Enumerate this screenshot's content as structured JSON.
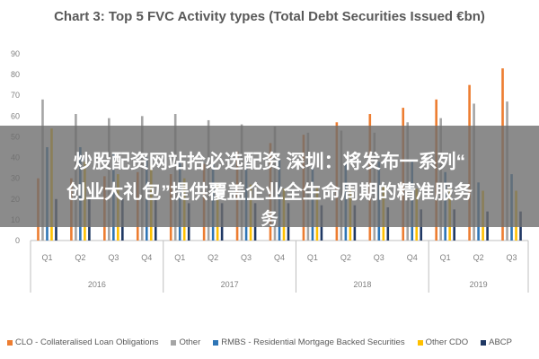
{
  "chart_data": {
    "type": "bar",
    "title": "Chart 3: Top 5 FVC Activity types (Total Debt Securities Issued €bn)",
    "xlabel": "",
    "ylabel": "",
    "ylim": [
      0,
      90
    ],
    "yticks": [
      0,
      10,
      20,
      30,
      40,
      50,
      60,
      70,
      80,
      90
    ],
    "grid": false,
    "legend_position": "bottom",
    "categories": [
      "Q1",
      "Q2",
      "Q3",
      "Q4",
      "Q1",
      "Q2",
      "Q3",
      "Q4",
      "Q1",
      "Q2",
      "Q3",
      "Q4",
      "Q1",
      "Q2",
      "Q3"
    ],
    "year_groups": [
      {
        "label": "2016",
        "span": 4
      },
      {
        "label": "2017",
        "span": 4
      },
      {
        "label": "2018",
        "span": 4
      },
      {
        "label": "2019",
        "span": 3
      }
    ],
    "series": [
      {
        "name": "CLO - Collateralised Loan Obligations",
        "color": "#ED7D31",
        "values": [
          30,
          30,
          31,
          33,
          32,
          37,
          43,
          47,
          51,
          57,
          61,
          64,
          68,
          75,
          83
        ]
      },
      {
        "name": "Other",
        "color": "#A5A5A5",
        "values": [
          68,
          61,
          59,
          60,
          61,
          58,
          56,
          55,
          52,
          53,
          52,
          57,
          59,
          66,
          67
        ]
      },
      {
        "name": "RMBS - Residential Mortgage Backed Securities",
        "color": "#2E75B6",
        "values": [
          45,
          45,
          42,
          40,
          39,
          37,
          39,
          39,
          36,
          38,
          38,
          38,
          33,
          28,
          32
        ]
      },
      {
        "name": "Other CDO",
        "color": "#FFC000",
        "values": [
          54,
          38,
          32,
          36,
          30,
          28,
          27,
          25,
          26,
          26,
          26,
          25,
          25,
          24,
          24
        ]
      },
      {
        "name": "ABCP",
        "color": "#1F3864",
        "values": [
          20,
          20,
          20,
          20,
          18,
          18,
          18,
          18,
          17,
          17,
          16,
          15,
          15,
          14,
          14
        ]
      }
    ]
  },
  "overlay": {
    "line1": "炒股配资网站拾必选配资 深圳：将发布一系列“",
    "line2": "创业大礼包”提供覆盖企业全生命周期的精准服务",
    "line3": "务"
  }
}
